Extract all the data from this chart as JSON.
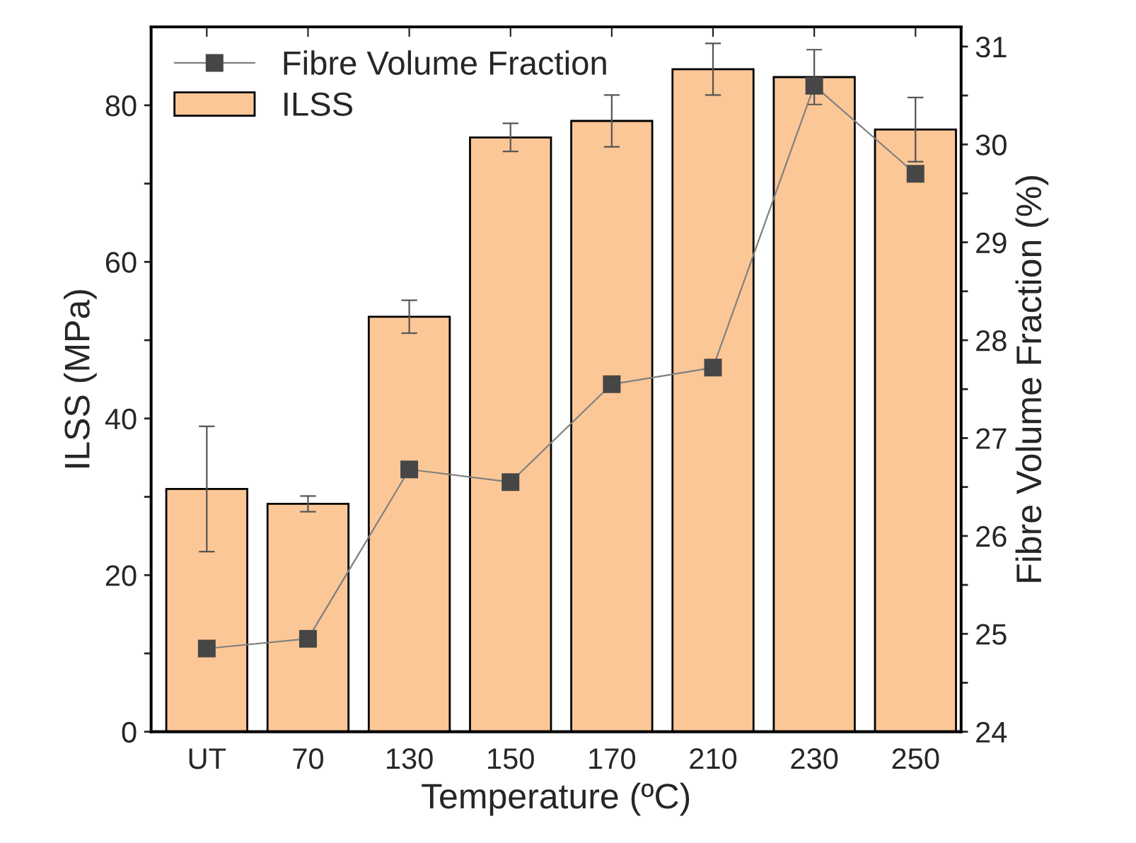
{
  "chart_data": {
    "type": "bar",
    "xlabel": "Temperature (ºC)",
    "ylabel": "ILSS (MPa)",
    "y2label": "Fibre Volume Fraction (%)",
    "categories": [
      "UT",
      "70",
      "130",
      "150",
      "170",
      "210",
      "230",
      "250"
    ],
    "series": [
      {
        "name": "ILSS",
        "color": "#fcc797",
        "values": [
          31.0,
          29.1,
          53.0,
          75.9,
          78.0,
          84.6,
          83.6,
          76.9
        ],
        "errors": [
          8,
          1,
          2.1,
          1.8,
          3.3,
          3.3,
          3.5,
          4.1
        ]
      },
      {
        "name": "Fibre Volume Fraction",
        "type": "line",
        "axis": "y2",
        "color": "#808080",
        "marker": "square",
        "values": [
          24.85,
          24.95,
          26.68,
          26.55,
          27.55,
          27.72,
          30.6,
          29.7
        ]
      }
    ],
    "ylim": [
      0,
      90
    ],
    "yticks": [
      0,
      {
        "value": 10,
        "label": null
      },
      20,
      {
        "value": 30,
        "label": null
      },
      40,
      {
        "value": 50,
        "label": null
      },
      60,
      {
        "value": 70,
        "label": null
      },
      80
    ],
    "y2lim": [
      24,
      31.2
    ],
    "y2ticks": [
      24,
      {
        "value": 24.5,
        "label": null
      },
      25,
      {
        "value": 25.5,
        "label": null
      },
      26,
      {
        "value": 26.5,
        "label": null
      },
      27,
      {
        "value": 27.5,
        "label": null
      },
      28,
      {
        "value": 28.5,
        "label": null
      },
      29,
      {
        "value": 29.5,
        "label": null
      },
      30,
      {
        "value": 30.5,
        "label": null
      },
      31
    ],
    "legend": "top left"
  }
}
